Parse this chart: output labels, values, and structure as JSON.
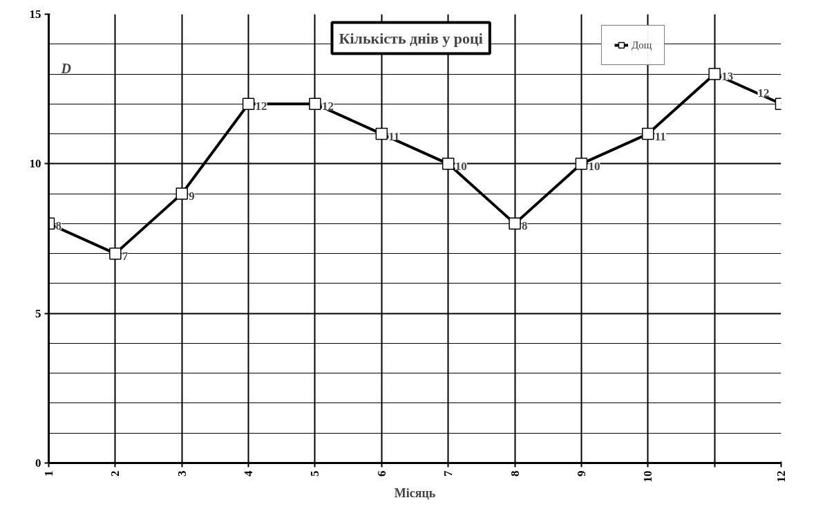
{
  "chart_data": {
    "type": "line",
    "title": "Кількість днів у році",
    "xlabel": "Місяць",
    "ylabel": "D",
    "x": [
      1,
      2,
      3,
      4,
      5,
      6,
      7,
      8,
      9,
      10,
      11,
      12
    ],
    "series": [
      {
        "name": "Дощ",
        "color": "#000000",
        "values": [
          8,
          7,
          9,
          12,
          12,
          11,
          10,
          8,
          10,
          11,
          13,
          12
        ]
      }
    ],
    "xlim": [
      1,
      12
    ],
    "xticks": [
      1,
      2,
      3,
      4,
      5,
      6,
      7,
      8,
      9,
      10,
      {
        "value": 11,
        "label": null
      },
      12
    ],
    "ylim": [
      0,
      15
    ],
    "yticks": [
      0,
      {
        "value": 1,
        "label": null
      },
      {
        "value": 2,
        "label": null
      },
      {
        "value": 3,
        "label": null
      },
      {
        "value": 4,
        "label": null
      },
      5,
      {
        "value": 6,
        "label": null
      },
      {
        "value": 7,
        "label": null
      },
      {
        "value": 8,
        "label": null
      },
      {
        "value": 9,
        "label": null
      },
      10,
      {
        "value": 11,
        "label": null
      },
      {
        "value": 12,
        "label": null
      },
      {
        "value": 13,
        "label": null
      },
      {
        "value": 14,
        "label": null
      },
      15
    ],
    "grid": true,
    "legend": "top",
    "marker": "square",
    "line_style": "solid",
    "data_labels": true
  }
}
